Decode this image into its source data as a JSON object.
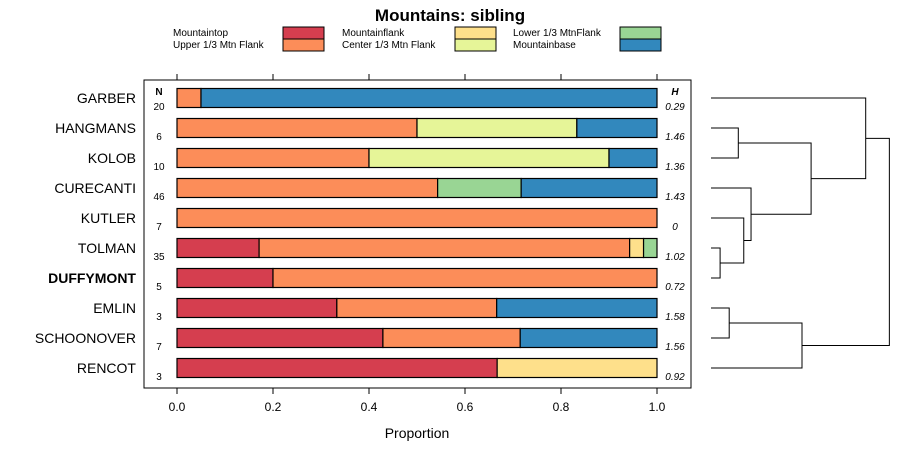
{
  "chart_data": {
    "type": "stacked-bar-horizontal",
    "title": "Mountains: sibling",
    "xlabel": "Proportion",
    "xlim": [
      0,
      1
    ],
    "xticks": [
      "0.0",
      "0.2",
      "0.4",
      "0.6",
      "0.8",
      "1.0"
    ],
    "n_header": "N",
    "h_header": "H",
    "legend": [
      {
        "key": "mountaintop",
        "label": "Mountaintop",
        "color": "#d53e4f"
      },
      {
        "key": "upper",
        "label": "Upper 1/3 Mtn Flank",
        "color": "#fc8d59"
      },
      {
        "key": "mountainflank",
        "label": "Mountainflank",
        "color": "#fee08b"
      },
      {
        "key": "center",
        "label": "Center 1/3 Mtn Flank",
        "color": "#e6f598"
      },
      {
        "key": "lower",
        "label": "Lower 1/3 MtnFlank",
        "color": "#99d594"
      },
      {
        "key": "base",
        "label": "Mountainbase",
        "color": "#3288bd"
      }
    ],
    "rows": [
      {
        "name": "GARBER",
        "n": "20",
        "h": "0.29",
        "bold": false,
        "segments": [
          [
            "upper",
            0.05
          ],
          [
            "base",
            0.95
          ]
        ]
      },
      {
        "name": "HANGMANS",
        "n": "6",
        "h": "1.46",
        "bold": false,
        "segments": [
          [
            "upper",
            0.5
          ],
          [
            "center",
            0.333
          ],
          [
            "base",
            0.167
          ]
        ]
      },
      {
        "name": "KOLOB",
        "n": "10",
        "h": "1.36",
        "bold": false,
        "segments": [
          [
            "upper",
            0.4
          ],
          [
            "center",
            0.5
          ],
          [
            "base",
            0.1
          ]
        ]
      },
      {
        "name": "CURECANTI",
        "n": "46",
        "h": "1.43",
        "bold": false,
        "segments": [
          [
            "upper",
            0.543
          ],
          [
            "lower",
            0.174
          ],
          [
            "base",
            0.283
          ]
        ]
      },
      {
        "name": "KUTLER",
        "n": "7",
        "h": "0",
        "bold": false,
        "segments": [
          [
            "upper",
            1.0
          ]
        ]
      },
      {
        "name": "TOLMAN",
        "n": "35",
        "h": "1.02",
        "bold": false,
        "segments": [
          [
            "mountaintop",
            0.171
          ],
          [
            "upper",
            0.772
          ],
          [
            "mountainflank",
            0.029
          ],
          [
            "lower",
            0.028
          ]
        ]
      },
      {
        "name": "DUFFYMONT",
        "n": "5",
        "h": "0.72",
        "bold": true,
        "segments": [
          [
            "mountaintop",
            0.2
          ],
          [
            "upper",
            0.8
          ]
        ]
      },
      {
        "name": "EMLIN",
        "n": "3",
        "h": "1.58",
        "bold": false,
        "segments": [
          [
            "mountaintop",
            0.333
          ],
          [
            "upper",
            0.333
          ],
          [
            "base",
            0.334
          ]
        ]
      },
      {
        "name": "SCHOONOVER",
        "n": "7",
        "h": "1.56",
        "bold": false,
        "segments": [
          [
            "mountaintop",
            0.429
          ],
          [
            "upper",
            0.286
          ],
          [
            "base",
            0.285
          ]
        ]
      },
      {
        "name": "RENCOT",
        "n": "3",
        "h": "0.92",
        "bold": false,
        "segments": [
          [
            "mountaintop",
            0.667
          ],
          [
            "mountainflank",
            0.333
          ]
        ]
      }
    ],
    "dendrogram": {
      "order": [
        "GARBER",
        "HANGMANS",
        "KOLOB",
        "CURECANTI",
        "KUTLER",
        "TOLMAN",
        "DUFFYMONT",
        "EMLIN",
        "SCHOONOVER",
        "RENCOT"
      ],
      "merges": [
        [
          1,
          2,
          0.15
        ],
        [
          5,
          6,
          0.05
        ],
        [
          7,
          8,
          0.1
        ],
        [
          4,
          11,
          0.18
        ],
        [
          9,
          12,
          0.5
        ],
        [
          3,
          13,
          0.22
        ],
        [
          10,
          15,
          0.55
        ],
        [
          0,
          16,
          0.85
        ],
        [
          14,
          17,
          0.98
        ]
      ]
    }
  }
}
